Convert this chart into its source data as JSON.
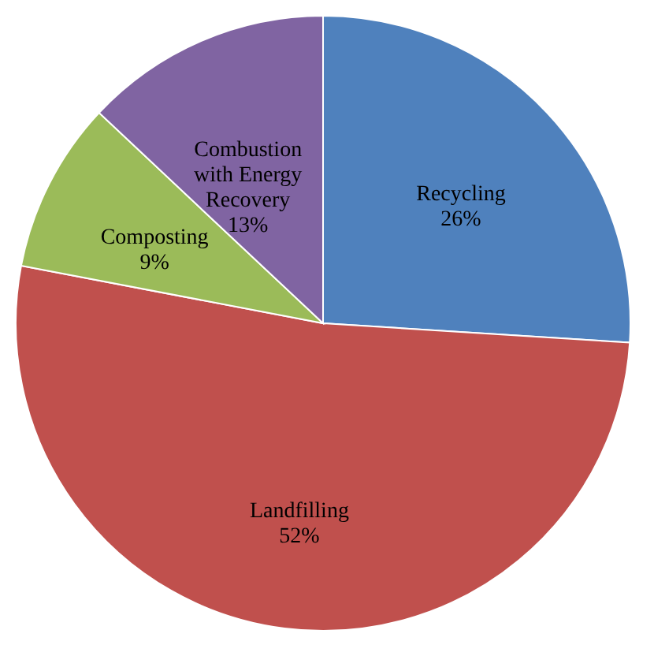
{
  "chart_data": {
    "type": "pie",
    "categories": [
      "Recycling",
      "Landfilling",
      "Composting",
      "Combustion with Energy Recovery"
    ],
    "values": [
      26,
      52,
      9,
      13
    ],
    "value_labels": [
      "26%",
      "52%",
      "9%",
      "13%"
    ],
    "colors": [
      "#4f81bd",
      "#c0504d",
      "#9bbb59",
      "#8064a2"
    ],
    "legend": false
  }
}
